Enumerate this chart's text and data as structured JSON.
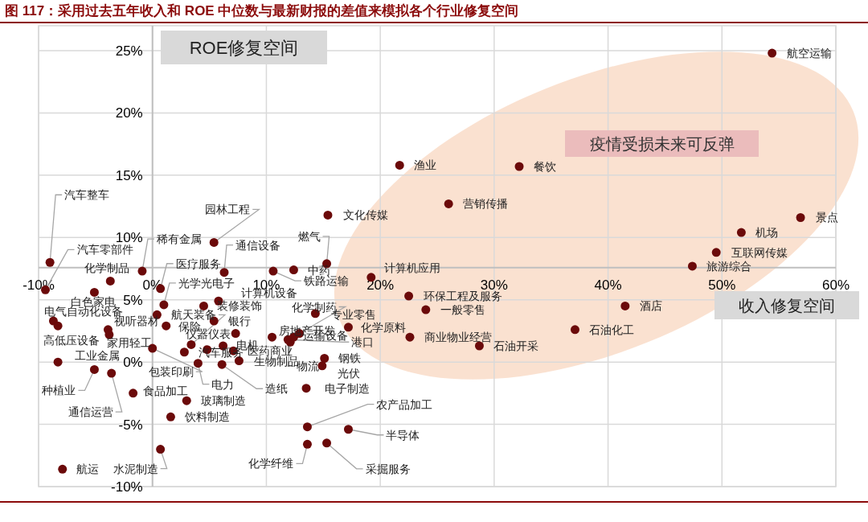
{
  "chart_data": {
    "type": "scatter",
    "title": "图 117：采用过去五年收入和 ROE 中位数与最新财报的差值来模拟各个行业修复空间",
    "xlim": [
      -10,
      60
    ],
    "ylim": [
      -10,
      27
    ],
    "xticks": [
      {
        "value": -10,
        "label": "-10%"
      },
      {
        "value": 0,
        "label": "0%"
      },
      {
        "value": 10,
        "label": "10%"
      },
      {
        "value": 20,
        "label": "20%"
      },
      {
        "value": 30,
        "label": "30%"
      },
      {
        "value": 40,
        "label": "40%"
      },
      {
        "value": 50,
        "label": "50%"
      },
      {
        "value": 60,
        "label": "60%"
      }
    ],
    "yticks": [
      {
        "value": -10,
        "label": "-10%"
      },
      {
        "value": -5,
        "label": "-5%"
      },
      {
        "value": 0,
        "label": "0%"
      },
      {
        "value": 5,
        "label": "5%"
      },
      {
        "value": 10,
        "label": "10%"
      },
      {
        "value": 15,
        "label": "15%"
      },
      {
        "value": 20,
        "label": "20%"
      },
      {
        "value": 25,
        "label": "25%"
      }
    ],
    "grid": true,
    "marker": "circle",
    "series": [
      {
        "color": "#6b0a0a",
        "x": [
          54.4,
          21.7,
          32.2,
          26.0,
          15.4,
          56.9,
          51.7,
          49.5,
          47.4,
          15.3,
          12.4,
          10.6,
          19.2,
          22.5,
          24.0,
          41.5,
          37.1,
          22.6,
          28.7,
          17.2,
          14.3,
          12.9,
          11.9,
          12.1,
          12.4,
          15.1,
          14.9,
          -9.0,
          -9.4,
          -3.7,
          -0.9,
          -5.1,
          -8.7,
          -3.9,
          -3.8,
          -8.3,
          -5.1,
          -3.6,
          -1.7,
          0.0,
          -7.9,
          0.7,
          0.7,
          1.0,
          0.4,
          1.2,
          3.4,
          4.5,
          5.8,
          5.4,
          6.3,
          5.4,
          7.3,
          10.5,
          2.8,
          6.2,
          7.1,
          7.6,
          4.0,
          6.1,
          3.0,
          1.6,
          13.5,
          13.6,
          17.2,
          13.6,
          15.3,
          -8.3,
          4.8
        ],
        "values": [
          24.8,
          15.8,
          15.7,
          12.7,
          11.8,
          11.6,
          10.4,
          8.8,
          7.7,
          7.9,
          7.4,
          7.3,
          6.8,
          5.3,
          4.2,
          4.5,
          2.6,
          2.0,
          1.3,
          2.8,
          3.9,
          2.3,
          1.8,
          1.6,
          2.0,
          0.3,
          -0.3,
          8.0,
          5.8,
          6.5,
          7.3,
          5.6,
          3.3,
          2.6,
          2.2,
          0.0,
          -0.6,
          -0.9,
          -2.5,
          1.1,
          -8.6,
          -7.0,
          5.9,
          4.6,
          3.8,
          2.9,
          1.4,
          4.5,
          4.9,
          3.3,
          7.2,
          9.6,
          2.3,
          2.0,
          0.8,
          1.3,
          0.9,
          0.1,
          -0.1,
          -0.2,
          -3.1,
          -4.4,
          -2.1,
          -5.2,
          -5.4,
          -6.6,
          -6.5,
          2.9,
          1.0
        ]
      }
    ],
    "annotations": [
      "ROE修复空间",
      "疫情受损未来可反弹",
      "收入修复空间",
      {
        "text": "航空运输",
        "x": 54.4,
        "y": 24.8
      },
      {
        "text": "渔业",
        "x": 21.7,
        "y": 15.8
      },
      {
        "text": "餐饮",
        "x": 32.2,
        "y": 15.7
      },
      {
        "text": "营销传播",
        "x": 26.0,
        "y": 12.7
      },
      {
        "text": "文化传媒",
        "x": 15.4,
        "y": 11.8
      },
      {
        "text": "景点",
        "x": 56.9,
        "y": 11.6
      },
      {
        "text": "机场",
        "x": 51.7,
        "y": 10.4
      },
      {
        "text": "互联网传媒",
        "x": 49.5,
        "y": 8.8
      },
      {
        "text": "旅游综合",
        "x": 47.4,
        "y": 7.7
      },
      {
        "text": "燃气",
        "x": 15.3,
        "y": 7.9
      },
      {
        "text": "中药",
        "x": 12.4,
        "y": 7.4
      },
      {
        "text": "铁路运输",
        "x": 10.6,
        "y": 7.3
      },
      {
        "text": "计算机应用",
        "x": 19.2,
        "y": 6.8
      },
      {
        "text": "环保工程及服务",
        "x": 22.5,
        "y": 5.3
      },
      {
        "text": "一般零售",
        "x": 24.0,
        "y": 4.2
      },
      {
        "text": "酒店",
        "x": 41.5,
        "y": 4.5
      },
      {
        "text": "石油化工",
        "x": 37.1,
        "y": 2.6
      },
      {
        "text": "商业物业经营",
        "x": 22.6,
        "y": 2.0
      },
      {
        "text": "石油开采",
        "x": 28.7,
        "y": 1.3
      },
      {
        "text": "化学原料",
        "x": 17.2,
        "y": 2.8
      },
      {
        "text": "专业零售",
        "x": 14.3,
        "y": 3.9
      },
      {
        "text": "化学制药",
        "x": 12.9,
        "y": 2.3
      },
      {
        "text": "港口",
        "x": 11.9,
        "y": 1.8
      },
      {
        "text": "物流",
        "x": 12.1,
        "y": 1.6
      },
      {
        "text": "运输设备",
        "x": 12.4,
        "y": 2.0
      },
      {
        "text": "钢铁",
        "x": 15.1,
        "y": 0.3
      },
      {
        "text": "光伏",
        "x": 14.9,
        "y": -0.3
      },
      {
        "text": "汽车整车",
        "x": -9.0,
        "y": 8.0
      },
      {
        "text": "汽车零部件",
        "x": -9.4,
        "y": 5.8
      },
      {
        "text": "化学制品",
        "x": -3.7,
        "y": 6.5
      },
      {
        "text": "稀有金属",
        "x": -0.9,
        "y": 7.3
      },
      {
        "text": "白色家电",
        "x": -5.1,
        "y": 5.6
      },
      {
        "text": "电气自动化设备",
        "x": -8.7,
        "y": 3.3
      },
      {
        "text": "高低压设备",
        "x": -3.9,
        "y": 2.6
      },
      {
        "text": "家用轻工",
        "x": -3.8,
        "y": 2.2
      },
      {
        "text": "工业金属",
        "x": -8.3,
        "y": 0.0
      },
      {
        "text": "种植业",
        "x": -5.1,
        "y": -0.6
      },
      {
        "text": "通信运营",
        "x": -3.6,
        "y": -0.9
      },
      {
        "text": "食品加工",
        "x": -1.7,
        "y": -2.5
      },
      {
        "text": "包装印刷",
        "x": 0.0,
        "y": 1.1
      },
      {
        "text": "航运",
        "x": -7.9,
        "y": -8.6
      },
      {
        "text": "水泥制造",
        "x": 0.7,
        "y": -7.0
      },
      {
        "text": "医疗服务",
        "x": 0.7,
        "y": 5.9
      },
      {
        "text": "光学光电子",
        "x": 1.0,
        "y": 4.6
      },
      {
        "text": "视听器材",
        "x": 0.4,
        "y": 3.8
      },
      {
        "text": "保险",
        "x": 1.2,
        "y": 2.9
      },
      {
        "text": "航天装备",
        "x": 3.4,
        "y": 1.4
      },
      {
        "text": "装修装饰",
        "x": 4.5,
        "y": 4.5
      },
      {
        "text": "计算机设备",
        "x": 5.8,
        "y": 4.9
      },
      {
        "text": "银行",
        "x": 5.4,
        "y": 3.3
      },
      {
        "text": "通信设备",
        "x": 6.3,
        "y": 7.2
      },
      {
        "text": "园林工程",
        "x": 5.4,
        "y": 9.6
      },
      {
        "text": "仪器仪表",
        "x": 7.3,
        "y": 2.3
      },
      {
        "text": "房地产开发",
        "x": 10.5,
        "y": 2.0
      },
      {
        "text": "汽车服务",
        "x": 2.8,
        "y": 0.8
      },
      {
        "text": "电机",
        "x": 6.2,
        "y": 1.3
      },
      {
        "text": "医药商业",
        "x": 7.1,
        "y": 0.9
      },
      {
        "text": "生物制品",
        "x": 7.6,
        "y": 0.1
      },
      {
        "text": "电力",
        "x": 4.0,
        "y": -0.1
      },
      {
        "text": "造纸",
        "x": 6.1,
        "y": -0.2
      },
      {
        "text": "玻璃制造",
        "x": 3.0,
        "y": -3.1
      },
      {
        "text": "饮料制造",
        "x": 1.6,
        "y": -4.4
      },
      {
        "text": "电子制造",
        "x": 13.5,
        "y": -2.1
      },
      {
        "text": "农产品加工",
        "x": 13.6,
        "y": -5.2
      },
      {
        "text": "半导体",
        "x": 17.2,
        "y": -5.4
      },
      {
        "text": "化学纤维",
        "x": 13.6,
        "y": -6.6
      },
      {
        "text": "采掘服务",
        "x": 15.3,
        "y": -6.5
      }
    ]
  }
}
